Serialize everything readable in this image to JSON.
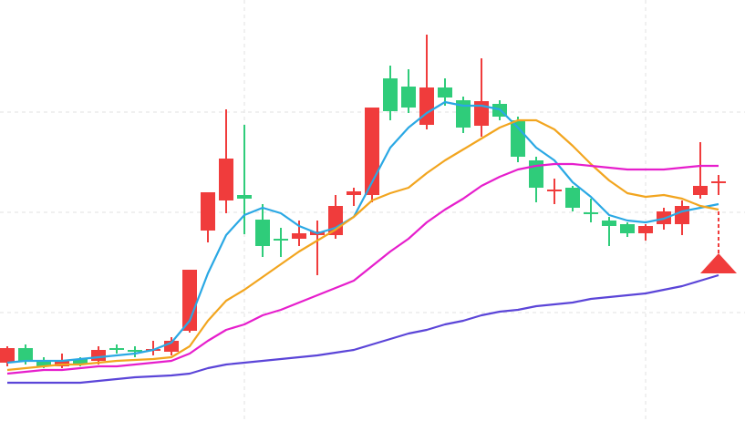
{
  "chart_data": {
    "type": "candlestick",
    "categories": [
      null,
      null,
      null,
      null,
      null,
      null,
      null,
      null,
      null,
      null,
      null,
      null,
      null,
      null,
      null,
      null,
      null,
      null,
      null,
      null,
      null,
      null,
      null,
      null,
      null,
      null,
      null,
      null,
      null,
      null,
      null,
      null,
      null,
      null,
      null,
      null,
      null,
      null,
      null,
      null
    ],
    "open": [
      64,
      80,
      67,
      60,
      68,
      66,
      80,
      78,
      77,
      76,
      99,
      209,
      242,
      248,
      221,
      200,
      200,
      204,
      204,
      248,
      248,
      376,
      367,
      325,
      366,
      352,
      324,
      348,
      330,
      286,
      252,
      256,
      229,
      220,
      216,
      206,
      216,
      216,
      248,
      261
    ],
    "close": [
      80,
      66,
      60,
      67,
      62,
      78,
      78,
      77,
      79,
      88,
      166,
      251,
      288,
      244,
      192,
      199,
      206,
      208,
      236,
      252,
      344,
      340,
      344,
      366,
      355,
      322,
      351,
      334,
      290,
      256,
      254,
      234,
      228,
      214,
      206,
      214,
      230,
      236,
      258,
      263
    ],
    "high": [
      82,
      84,
      70,
      74,
      70,
      82,
      84,
      82,
      88,
      92,
      166,
      251,
      342,
      325,
      238,
      212,
      220,
      220,
      248,
      256,
      344,
      390,
      386,
      424,
      376,
      356,
      398,
      352,
      334,
      290,
      266,
      258,
      244,
      224,
      218,
      216,
      234,
      242,
      306,
      270
    ],
    "low": [
      60,
      62,
      58,
      58,
      60,
      62,
      74,
      70,
      72,
      72,
      97,
      196,
      228,
      205,
      180,
      180,
      192,
      160,
      200,
      236,
      240,
      330,
      338,
      320,
      346,
      316,
      312,
      330,
      284,
      240,
      238,
      230,
      218,
      192,
      202,
      198,
      210,
      204,
      244,
      248
    ],
    "up_color": "#f03c3c",
    "down_color": "#2fcc7a",
    "series": [
      {
        "color": "#2aa8e4",
        "values": [
          64,
          66,
          66,
          66,
          68,
          70,
          72,
          74,
          78,
          86,
          110,
          162,
          204,
          226,
          234,
          228,
          214,
          206,
          212,
          224,
          262,
          300,
          322,
          338,
          350,
          346,
          346,
          342,
          322,
          300,
          286,
          262,
          246,
          226,
          220,
          218,
          222,
          230,
          234,
          238
        ]
      },
      {
        "color": "#f2a51f",
        "values": [
          56,
          58,
          60,
          62,
          62,
          64,
          66,
          67,
          68,
          70,
          82,
          110,
          132,
          144,
          158,
          172,
          186,
          198,
          210,
          224,
          242,
          250,
          256,
          272,
          286,
          298,
          310,
          322,
          330,
          330,
          320,
          302,
          282,
          264,
          250,
          246,
          248,
          244,
          236,
          232
        ]
      },
      {
        "color": "#e61ecc",
        "values": [
          52,
          54,
          56,
          56,
          58,
          60,
          60,
          62,
          64,
          66,
          74,
          88,
          100,
          106,
          116,
          122,
          130,
          138,
          146,
          154,
          170,
          186,
          200,
          218,
          232,
          244,
          258,
          268,
          276,
          280,
          282,
          282,
          280,
          278,
          276,
          276,
          276,
          278,
          280,
          280
        ]
      },
      {
        "color": "#5b45d8",
        "values": [
          42,
          42,
          42,
          42,
          42,
          44,
          46,
          48,
          49,
          50,
          52,
          58,
          62,
          64,
          66,
          68,
          70,
          72,
          75,
          78,
          84,
          90,
          96,
          100,
          106,
          110,
          116,
          120,
          122,
          126,
          128,
          130,
          134,
          136,
          138,
          140,
          144,
          148,
          154,
          160
        ]
      }
    ],
    "ylim": [
      0,
      462
    ],
    "gridlines_y": [
      119,
      229,
      339
    ],
    "gridlines_x": [
      13,
      35
    ]
  }
}
